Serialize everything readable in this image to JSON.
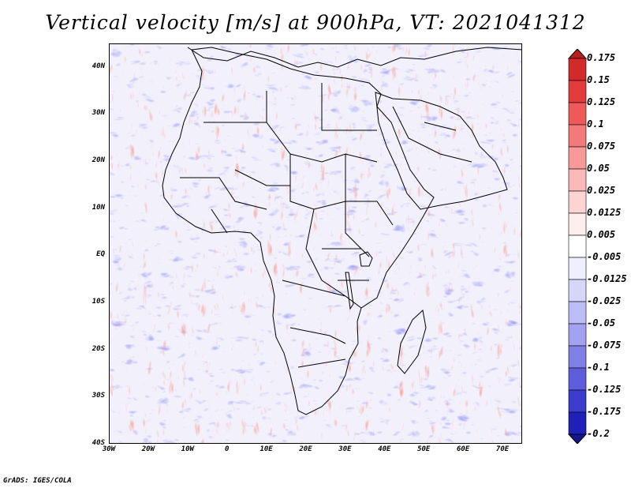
{
  "title": "Vertical velocity [m/s] at 900hPa, VT: 2021041312",
  "credit": "GrADS: IGES/COLA",
  "map": {
    "lon_range": [
      -30,
      75
    ],
    "lat_range": [
      -40,
      45
    ],
    "lat_labels": [
      "40N",
      "30N",
      "20N",
      "10N",
      "EQ",
      "10S",
      "20S",
      "30S",
      "40S"
    ],
    "lat_values": [
      40,
      30,
      20,
      10,
      0,
      -10,
      -20,
      -30,
      -40
    ],
    "lon_labels": [
      "30W",
      "20W",
      "10W",
      "0",
      "10E",
      "20E",
      "30E",
      "40E",
      "50E",
      "60E",
      "70E"
    ],
    "lon_values": [
      -30,
      -20,
      -10,
      0,
      10,
      20,
      30,
      40,
      50,
      60,
      70
    ],
    "field_description_colors": {
      "positive": "#e8402a",
      "negative": "#4a4ae0",
      "neutral": "#ffffff"
    }
  },
  "colorbar": {
    "levels": [
      "0.175",
      "0.15",
      "0.125",
      "0.1",
      "0.075",
      "0.05",
      "0.025",
      "0.0125",
      "0.005",
      "-0.005",
      "-0.0125",
      "-0.025",
      "-0.05",
      "-0.075",
      "-0.1",
      "-0.125",
      "-0.175",
      "-0.2"
    ],
    "colors": [
      "#b81e1e",
      "#d22a2a",
      "#e43c3c",
      "#ee5a5a",
      "#f47a7a",
      "#f89a9a",
      "#fbb8b8",
      "#fdd4d4",
      "#ffeeee",
      "#ffffff",
      "#eeeeff",
      "#d6d6fb",
      "#bcbcf6",
      "#a2a2f0",
      "#8080e6",
      "#5e5edc",
      "#3c3cce",
      "#2020b8",
      "#16168e"
    ]
  }
}
